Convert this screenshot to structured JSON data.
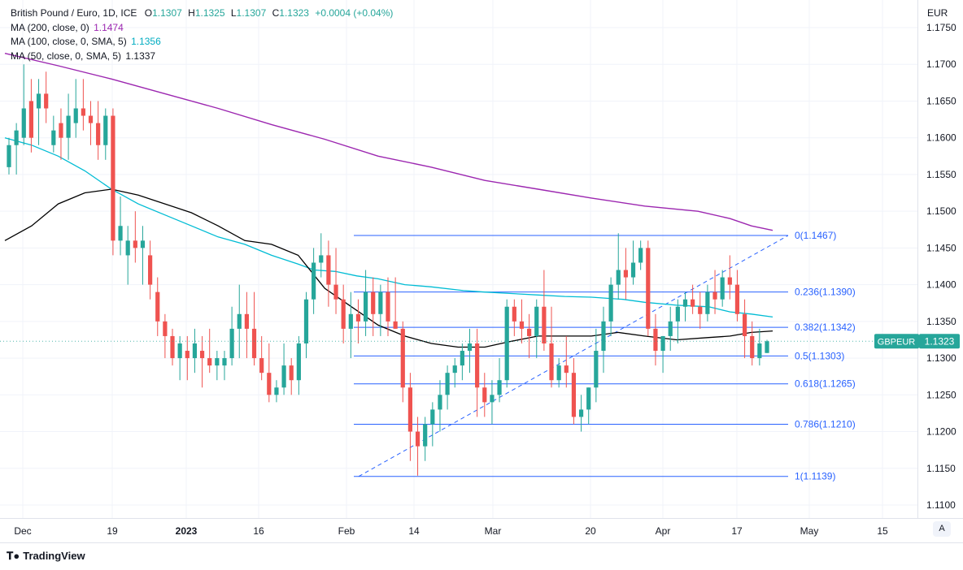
{
  "header": {
    "symbol": "British Pound / Euro, 1D, ICE",
    "open_label": "O",
    "open": "1.1307",
    "high_label": "H",
    "high": "1.1325",
    "low_label": "L",
    "low": "1.1307",
    "close_label": "C",
    "close": "1.1323",
    "change": "+0.0004 (+0.04%)"
  },
  "indicators": [
    {
      "label": "MA (200, close, 0)",
      "value": "1.1474",
      "color": "#9c27b0"
    },
    {
      "label": "MA (100, close, 0, SMA, 5)",
      "value": "1.1356",
      "color": "#00bcd4"
    },
    {
      "label": "MA (50, close, 0, SMA, 5)",
      "value": "1.1337",
      "color": "#131722"
    }
  ],
  "price_axis": {
    "currency": "EUR",
    "ticks": [
      "1.1750",
      "1.1700",
      "1.1650",
      "1.1600",
      "1.1550",
      "1.1500",
      "1.1450",
      "1.1400",
      "1.1350",
      "1.1300",
      "1.1250",
      "1.1200",
      "1.1150",
      "1.1100"
    ]
  },
  "time_axis": {
    "labels": [
      "Dec",
      "19",
      "2023",
      "16",
      "Feb",
      "14",
      "Mar",
      "20",
      "Apr",
      "17",
      "May",
      "15"
    ],
    "bold": [
      "2023"
    ]
  },
  "current_price": {
    "symbol": "GBPEUR",
    "value": "1.1323"
  },
  "branding": "TradingView",
  "auto_button": "A",
  "colors": {
    "up": "#26a69a",
    "down": "#ef5350",
    "fib": "#2962ff",
    "ma200": "#9c27b0",
    "ma100": "#00bcd4",
    "ma50": "#000000"
  },
  "chart_data": {
    "type": "candlestick",
    "title": "British Pound / Euro, 1D, ICE",
    "ylabel": "EUR",
    "ylim": [
      1.1085,
      1.177
    ],
    "x": [
      "2022-11-29",
      "2022-11-30",
      "2022-12-01",
      "2022-12-02",
      "2022-12-05",
      "2022-12-06",
      "2022-12-07",
      "2022-12-08",
      "2022-12-09",
      "2022-12-12",
      "2022-12-13",
      "2022-12-14",
      "2022-12-15",
      "2022-12-16",
      "2022-12-19",
      "2022-12-20",
      "2022-12-21",
      "2022-12-22",
      "2022-12-23",
      "2022-12-27",
      "2022-12-28",
      "2022-12-29",
      "2022-12-30",
      "2023-01-02",
      "2023-01-03",
      "2023-01-04",
      "2023-01-05",
      "2023-01-06",
      "2023-01-09",
      "2023-01-10",
      "2023-01-11",
      "2023-01-12",
      "2023-01-13",
      "2023-01-16",
      "2023-01-17",
      "2023-01-18",
      "2023-01-19",
      "2023-01-20",
      "2023-01-23",
      "2023-01-24",
      "2023-01-25",
      "2023-01-26",
      "2023-01-27",
      "2023-01-30",
      "2023-01-31",
      "2023-02-01",
      "2023-02-02",
      "2023-02-03",
      "2023-02-06",
      "2023-02-07",
      "2023-02-08",
      "2023-02-09",
      "2023-02-10",
      "2023-02-13",
      "2023-02-14",
      "2023-02-15",
      "2023-02-16",
      "2023-02-17",
      "2023-02-20",
      "2023-02-21",
      "2023-02-22",
      "2023-02-23",
      "2023-02-24",
      "2023-02-27",
      "2023-02-28",
      "2023-03-01",
      "2023-03-02",
      "2023-03-03",
      "2023-03-06",
      "2023-03-07",
      "2023-03-08",
      "2023-03-09",
      "2023-03-10",
      "2023-03-13",
      "2023-03-14",
      "2023-03-15",
      "2023-03-16",
      "2023-03-17",
      "2023-03-20",
      "2023-03-21",
      "2023-03-22",
      "2023-03-23",
      "2023-03-24",
      "2023-03-27",
      "2023-03-28",
      "2023-03-29",
      "2023-03-30",
      "2023-03-31",
      "2023-04-03",
      "2023-04-04",
      "2023-04-05",
      "2023-04-06",
      "2023-04-07",
      "2023-04-10",
      "2023-04-11",
      "2023-04-12",
      "2023-04-13",
      "2023-04-14",
      "2023-04-17",
      "2023-04-18",
      "2023-04-19",
      "2023-04-20",
      "2023-04-21"
    ],
    "candles": [
      [
        1.156,
        1.16,
        1.155,
        1.159
      ],
      [
        1.159,
        1.162,
        1.155,
        1.161
      ],
      [
        1.16,
        1.17,
        1.159,
        1.164
      ],
      [
        1.165,
        1.168,
        1.158,
        1.16
      ],
      [
        1.164,
        1.168,
        1.159,
        1.166
      ],
      [
        1.166,
        1.169,
        1.162,
        1.164
      ],
      [
        1.159,
        1.163,
        1.158,
        1.161
      ],
      [
        1.162,
        1.164,
        1.157,
        1.16
      ],
      [
        1.16,
        1.166,
        1.157,
        1.163
      ],
      [
        1.162,
        1.168,
        1.16,
        1.164
      ],
      [
        1.164,
        1.168,
        1.161,
        1.163
      ],
      [
        1.163,
        1.165,
        1.159,
        1.162
      ],
      [
        1.162,
        1.165,
        1.157,
        1.159
      ],
      [
        1.159,
        1.164,
        1.157,
        1.163
      ],
      [
        1.163,
        1.164,
        1.144,
        1.146
      ],
      [
        1.146,
        1.152,
        1.144,
        1.148
      ],
      [
        1.144,
        1.148,
        1.14,
        1.146
      ],
      [
        1.146,
        1.15,
        1.143,
        1.145
      ],
      [
        1.145,
        1.148,
        1.14,
        1.146
      ],
      [
        1.144,
        1.146,
        1.138,
        1.14
      ],
      [
        1.139,
        1.141,
        1.133,
        1.135
      ],
      [
        1.135,
        1.136,
        1.13,
        1.133
      ],
      [
        1.133,
        1.134,
        1.129,
        1.13
      ],
      [
        1.13,
        1.133,
        1.127,
        1.132
      ],
      [
        1.131,
        1.133,
        1.127,
        1.13
      ],
      [
        1.13,
        1.134,
        1.128,
        1.132
      ],
      [
        1.131,
        1.133,
        1.126,
        1.13
      ],
      [
        1.13,
        1.134,
        1.128,
        1.129
      ],
      [
        1.129,
        1.131,
        1.127,
        1.13
      ],
      [
        1.129,
        1.131,
        1.127,
        1.13
      ],
      [
        1.13,
        1.137,
        1.129,
        1.134
      ],
      [
        1.134,
        1.14,
        1.13,
        1.136
      ],
      [
        1.136,
        1.139,
        1.13,
        1.134
      ],
      [
        1.134,
        1.139,
        1.129,
        1.13
      ],
      [
        1.13,
        1.133,
        1.127,
        1.128
      ],
      [
        1.128,
        1.132,
        1.124,
        1.125
      ],
      [
        1.125,
        1.127,
        1.124,
        1.126
      ],
      [
        1.126,
        1.132,
        1.125,
        1.129
      ],
      [
        1.129,
        1.13,
        1.125,
        1.127
      ],
      [
        1.127,
        1.133,
        1.125,
        1.132
      ],
      [
        1.132,
        1.139,
        1.13,
        1.138
      ],
      [
        1.138,
        1.145,
        1.136,
        1.143
      ],
      [
        1.143,
        1.147,
        1.141,
        1.144
      ],
      [
        1.144,
        1.146,
        1.137,
        1.14
      ],
      [
        1.14,
        1.145,
        1.136,
        1.138
      ],
      [
        1.138,
        1.14,
        1.132,
        1.134
      ],
      [
        1.134,
        1.139,
        1.13,
        1.136
      ],
      [
        1.136,
        1.138,
        1.132,
        1.135
      ],
      [
        1.135,
        1.142,
        1.133,
        1.139
      ],
      [
        1.139,
        1.141,
        1.133,
        1.136
      ],
      [
        1.136,
        1.14,
        1.133,
        1.139
      ],
      [
        1.139,
        1.141,
        1.133,
        1.135
      ],
      [
        1.135,
        1.141,
        1.134,
        1.134
      ],
      [
        1.134,
        1.135,
        1.124,
        1.126
      ],
      [
        1.126,
        1.128,
        1.116,
        1.12
      ],
      [
        1.12,
        1.122,
        1.114,
        1.118
      ],
      [
        1.118,
        1.122,
        1.116,
        1.121
      ],
      [
        1.121,
        1.124,
        1.118,
        1.123
      ],
      [
        1.123,
        1.127,
        1.12,
        1.125
      ],
      [
        1.125,
        1.129,
        1.123,
        1.128
      ],
      [
        1.128,
        1.13,
        1.126,
        1.129
      ],
      [
        1.129,
        1.132,
        1.127,
        1.131
      ],
      [
        1.131,
        1.134,
        1.128,
        1.132
      ],
      [
        1.132,
        1.134,
        1.122,
        1.126
      ],
      [
        1.126,
        1.128,
        1.122,
        1.124
      ],
      [
        1.124,
        1.127,
        1.121,
        1.125
      ],
      [
        1.125,
        1.13,
        1.124,
        1.127
      ],
      [
        1.127,
        1.138,
        1.126,
        1.137
      ],
      [
        1.137,
        1.138,
        1.133,
        1.135
      ],
      [
        1.135,
        1.138,
        1.132,
        1.134
      ],
      [
        1.134,
        1.136,
        1.13,
        1.133
      ],
      [
        1.133,
        1.138,
        1.13,
        1.137
      ],
      [
        1.137,
        1.142,
        1.131,
        1.132
      ],
      [
        1.132,
        1.137,
        1.126,
        1.127
      ],
      [
        1.127,
        1.13,
        1.126,
        1.129
      ],
      [
        1.129,
        1.133,
        1.126,
        1.128
      ],
      [
        1.128,
        1.13,
        1.121,
        1.122
      ],
      [
        1.122,
        1.125,
        1.12,
        1.123
      ],
      [
        1.123,
        1.126,
        1.121,
        1.126
      ],
      [
        1.126,
        1.134,
        1.124,
        1.131
      ],
      [
        1.131,
        1.137,
        1.128,
        1.135
      ],
      [
        1.135,
        1.141,
        1.133,
        1.14
      ],
      [
        1.14,
        1.147,
        1.138,
        1.142
      ],
      [
        1.142,
        1.145,
        1.138,
        1.141
      ],
      [
        1.141,
        1.146,
        1.14,
        1.143
      ],
      [
        1.143,
        1.146,
        1.142,
        1.145
      ],
      [
        1.145,
        1.146,
        1.133,
        1.134
      ],
      [
        1.134,
        1.136,
        1.129,
        1.131
      ],
      [
        1.131,
        1.133,
        1.128,
        1.133
      ],
      [
        1.133,
        1.137,
        1.131,
        1.135
      ],
      [
        1.135,
        1.138,
        1.132,
        1.137
      ],
      [
        1.137,
        1.139,
        1.135,
        1.138
      ],
      [
        1.138,
        1.14,
        1.136,
        1.137
      ],
      [
        1.137,
        1.139,
        1.134,
        1.136
      ],
      [
        1.136,
        1.14,
        1.135,
        1.139
      ],
      [
        1.139,
        1.142,
        1.136,
        1.138
      ],
      [
        1.138,
        1.142,
        1.137,
        1.141
      ],
      [
        1.141,
        1.144,
        1.138,
        1.14
      ],
      [
        1.14,
        1.142,
        1.135,
        1.136
      ],
      [
        1.136,
        1.138,
        1.13,
        1.133
      ],
      [
        1.133,
        1.135,
        1.129,
        1.13
      ],
      [
        1.13,
        1.134,
        1.129,
        1.132
      ],
      [
        1.1307,
        1.1325,
        1.1307,
        1.1323
      ]
    ],
    "ma200": [
      [
        0,
        1.1715
      ],
      [
        10,
        1.1698
      ],
      [
        20,
        1.168
      ],
      [
        30,
        1.166
      ],
      [
        40,
        1.164
      ],
      [
        50,
        1.1618
      ],
      [
        60,
        1.1598
      ],
      [
        70,
        1.1575
      ],
      [
        80,
        1.156
      ],
      [
        90,
        1.1542
      ],
      [
        100,
        1.153
      ],
      [
        110,
        1.1518
      ],
      [
        120,
        1.1507
      ],
      [
        130,
        1.15
      ],
      [
        136,
        1.149
      ],
      [
        140,
        1.148
      ],
      [
        144,
        1.1474
      ]
    ],
    "ma100": [
      [
        0,
        1.16
      ],
      [
        5,
        1.159
      ],
      [
        10,
        1.1575
      ],
      [
        15,
        1.1555
      ],
      [
        20,
        1.153
      ],
      [
        25,
        1.151
      ],
      [
        30,
        1.1495
      ],
      [
        35,
        1.148
      ],
      [
        40,
        1.1465
      ],
      [
        45,
        1.1455
      ],
      [
        50,
        1.144
      ],
      [
        55,
        1.1428
      ],
      [
        58,
        1.142
      ],
      [
        62,
        1.1418
      ],
      [
        66,
        1.1412
      ],
      [
        70,
        1.1408
      ],
      [
        75,
        1.14
      ],
      [
        80,
        1.1397
      ],
      [
        86,
        1.1392
      ],
      [
        90,
        1.139
      ],
      [
        95,
        1.1388
      ],
      [
        100,
        1.1386
      ],
      [
        105,
        1.1384
      ],
      [
        110,
        1.1383
      ],
      [
        116,
        1.138
      ],
      [
        120,
        1.1376
      ],
      [
        126,
        1.1372
      ],
      [
        132,
        1.137
      ],
      [
        136,
        1.1363
      ],
      [
        140,
        1.136
      ],
      [
        144,
        1.1356
      ]
    ],
    "ma50": [
      [
        0,
        1.146
      ],
      [
        5,
        1.148
      ],
      [
        10,
        1.151
      ],
      [
        15,
        1.1525
      ],
      [
        20,
        1.153
      ],
      [
        25,
        1.1522
      ],
      [
        30,
        1.151
      ],
      [
        35,
        1.1498
      ],
      [
        40,
        1.148
      ],
      [
        45,
        1.146
      ],
      [
        50,
        1.1455
      ],
      [
        55,
        1.144
      ],
      [
        60,
        1.1395
      ],
      [
        65,
        1.137
      ],
      [
        70,
        1.1345
      ],
      [
        75,
        1.133
      ],
      [
        80,
        1.132
      ],
      [
        85,
        1.1315
      ],
      [
        90,
        1.1315
      ],
      [
        95,
        1.1323
      ],
      [
        100,
        1.133
      ],
      [
        105,
        1.133
      ],
      [
        110,
        1.133
      ],
      [
        115,
        1.1335
      ],
      [
        120,
        1.133
      ],
      [
        126,
        1.1325
      ],
      [
        132,
        1.1328
      ],
      [
        136,
        1.133
      ],
      [
        140,
        1.1335
      ],
      [
        144,
        1.1337
      ]
    ],
    "fib_levels": [
      {
        "ratio": "0",
        "value": 1.1467,
        "label": "0(1.1467)"
      },
      {
        "ratio": "0.236",
        "value": 1.139,
        "label": "0.236(1.1390)"
      },
      {
        "ratio": "0.382",
        "value": 1.1342,
        "label": "0.382(1.1342)"
      },
      {
        "ratio": "0.5",
        "value": 1.1303,
        "label": "0.5(1.1303)"
      },
      {
        "ratio": "0.618",
        "value": 1.1265,
        "label": "0.618(1.1265)"
      },
      {
        "ratio": "0.786",
        "value": 1.121,
        "label": "0.786(1.1210)"
      },
      {
        "ratio": "1",
        "value": 1.1139,
        "label": "1(1.1139)"
      }
    ],
    "fib_trendline": {
      "from": {
        "date": "2023-02-02",
        "value": 1.1139
      },
      "to": {
        "date": "2023-04-27",
        "value": 1.1467
      }
    }
  }
}
